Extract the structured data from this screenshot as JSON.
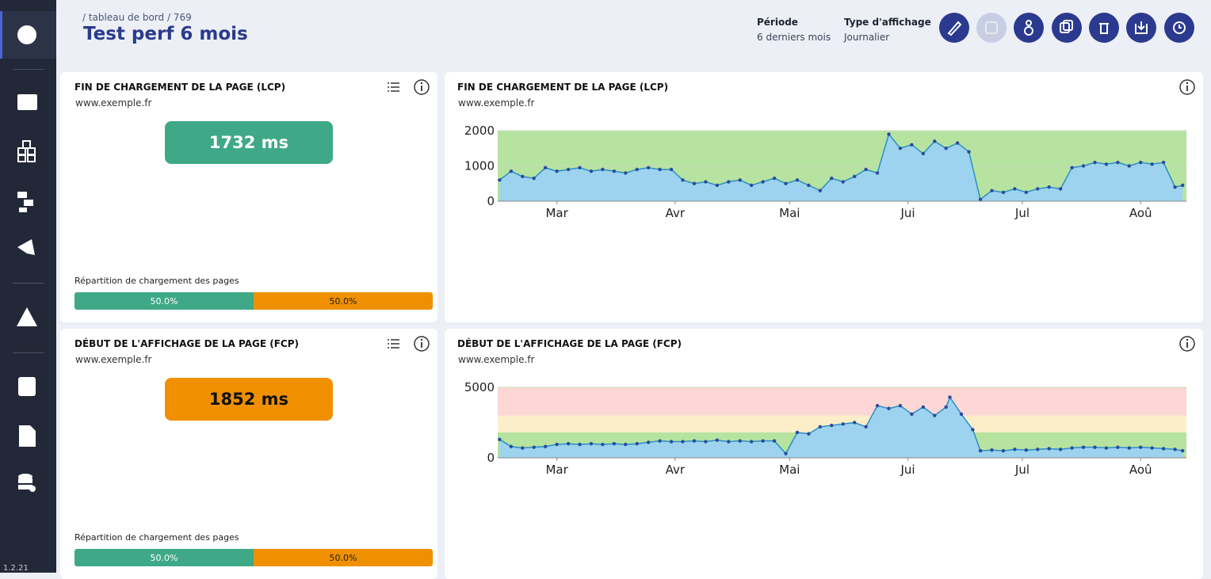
{
  "sidebar": {
    "version": "1.2.21"
  },
  "header": {
    "breadcrumb": "/ tableau de bord / 769",
    "title": "Test perf 6 mois",
    "period_label": "Période",
    "period_value": "6 derniers mois",
    "display_label": "Type d'affichage",
    "display_value": "Journalier"
  },
  "kpis": [
    {
      "title": "FIN DE CHARGEMENT DE LA PAGE (LCP)",
      "subtitle": "www.exemple.fr",
      "value": 1732,
      "value_label": "1732 ms",
      "color": "#3fa987",
      "text_color": "#ffffff",
      "distribution_title": "Répartition de chargement des pages",
      "distribution": [
        {
          "value": 50,
          "label": "50.0%",
          "color": "#3fa987"
        },
        {
          "value": 50,
          "label": "50.0%",
          "color": "#f09000"
        }
      ]
    },
    {
      "title": "DÉBUT DE L'AFFICHAGE DE LA PAGE (FCP)",
      "subtitle": "www.exemple.fr",
      "value": 1852,
      "value_label": "1852 ms",
      "color": "#f09000",
      "text_color": "#111111",
      "distribution_title": "Répartition de chargement des pages",
      "distribution": [
        {
          "value": 50,
          "label": "50.0%",
          "color": "#3fa987"
        },
        {
          "value": 50,
          "label": "50.0%",
          "color": "#f09000"
        }
      ]
    }
  ],
  "chart_data": [
    {
      "type": "area",
      "title": "FIN DE CHARGEMENT DE LA PAGE (LCP)",
      "subtitle": "www.exemple.fr",
      "x": [
        -15,
        -12,
        -9,
        -6,
        -3,
        0,
        3,
        6,
        9,
        12,
        15,
        18,
        21,
        24,
        27,
        30,
        33,
        36,
        39,
        42,
        45,
        48,
        51,
        54,
        57,
        60,
        63,
        66,
        69,
        72,
        75,
        78,
        81,
        84,
        87,
        90,
        93,
        96,
        99,
        102,
        105,
        108,
        111,
        114,
        117,
        120,
        123,
        126,
        129,
        132,
        135,
        138,
        141,
        144,
        147,
        150,
        153,
        156,
        159,
        162,
        164
      ],
      "values": [
        600,
        850,
        700,
        650,
        950,
        850,
        900,
        950,
        850,
        900,
        850,
        800,
        900,
        950,
        900,
        900,
        600,
        500,
        550,
        450,
        550,
        600,
        450,
        550,
        650,
        500,
        600,
        450,
        300,
        650,
        550,
        700,
        900,
        800,
        1900,
        1500,
        1600,
        1350,
        1700,
        1500,
        1650,
        1400,
        50,
        300,
        250,
        350,
        250,
        350,
        400,
        350,
        950,
        1000,
        1100,
        1050,
        1100,
        1000,
        1100,
        1050,
        1100,
        400,
        450
      ],
      "color": "#2a8fc4",
      "fill": "#9dd3ee",
      "marker_color": "#2c4a9e",
      "xlim": [
        -15.5,
        165
      ],
      "xticks": [
        {
          "value": 0,
          "label": "Mar"
        },
        {
          "value": 31,
          "label": "Avr"
        },
        {
          "value": 61,
          "label": "Mai"
        },
        {
          "value": 92,
          "label": "Jui"
        },
        {
          "value": 122,
          "label": "Jul"
        },
        {
          "value": 153,
          "label": "Aoû"
        }
      ],
      "ylim": [
        0,
        2000
      ],
      "yticks": [
        0,
        1000,
        2000
      ],
      "grid": true,
      "zones": [
        {
          "from": 0,
          "to": 2000,
          "color": "#b6e3a0"
        }
      ]
    },
    {
      "type": "area",
      "title": "DÉBUT DE L'AFFICHAGE DE LA PAGE (FCP)",
      "subtitle": "www.exemple.fr",
      "x": [
        -15,
        -12,
        -9,
        -6,
        -3,
        0,
        3,
        6,
        9,
        12,
        15,
        18,
        21,
        24,
        27,
        30,
        33,
        36,
        39,
        42,
        45,
        48,
        51,
        54,
        57,
        60,
        63,
        66,
        69,
        72,
        75,
        78,
        81,
        84,
        87,
        90,
        93,
        96,
        99,
        102,
        103,
        106,
        109,
        111,
        114,
        117,
        120,
        123,
        126,
        129,
        132,
        135,
        138,
        141,
        144,
        147,
        150,
        153,
        156,
        159,
        162,
        164
      ],
      "values": [
        1300,
        800,
        700,
        750,
        800,
        950,
        1000,
        950,
        1000,
        950,
        1000,
        950,
        1000,
        1100,
        1200,
        1150,
        1150,
        1200,
        1150,
        1250,
        1150,
        1200,
        1150,
        1200,
        1200,
        300,
        1800,
        1700,
        2200,
        2300,
        2400,
        2500,
        2200,
        3700,
        3500,
        3700,
        3100,
        3600,
        3000,
        3600,
        4300,
        3100,
        2000,
        500,
        550,
        500,
        600,
        550,
        600,
        650,
        600,
        700,
        750,
        750,
        700,
        750,
        700,
        750,
        700,
        650,
        600,
        500
      ],
      "color": "#2a8fc4",
      "fill": "#9dd3ee",
      "marker_color": "#2c4a9e",
      "xlim": [
        -15.5,
        165
      ],
      "xticks": [
        {
          "value": 0,
          "label": "Mar"
        },
        {
          "value": 31,
          "label": "Avr"
        },
        {
          "value": 61,
          "label": "Mai"
        },
        {
          "value": 92,
          "label": "Jui"
        },
        {
          "value": 122,
          "label": "Jul"
        },
        {
          "value": 153,
          "label": "Aoû"
        }
      ],
      "ylim": [
        0,
        5000
      ],
      "yticks": [
        0,
        5000
      ],
      "grid": true,
      "zones": [
        {
          "from": 0,
          "to": 1800,
          "color": "#b6e3a0"
        },
        {
          "from": 1800,
          "to": 3000,
          "color": "#fbeec8"
        },
        {
          "from": 3000,
          "to": 5000,
          "color": "#fdd6d6"
        }
      ]
    }
  ]
}
